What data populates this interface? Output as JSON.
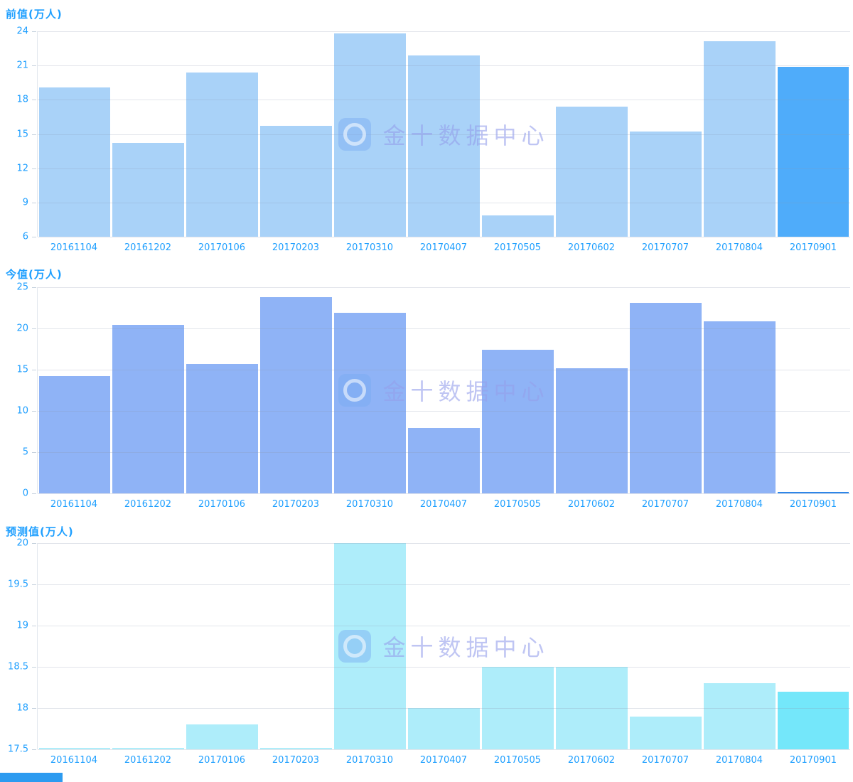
{
  "watermark": {
    "text": "金十数据中心",
    "icon": "jin10-logo-icon"
  },
  "corner_partial": {
    "color": "#2D9BF0"
  },
  "chart_data": [
    {
      "type": "bar",
      "title": "前值(万人)",
      "categories": [
        "20161104",
        "20161202",
        "20170106",
        "20170203",
        "20170310",
        "20170407",
        "20170505",
        "20170602",
        "20170707",
        "20170804",
        "20170901"
      ],
      "values": [
        19.1,
        14.2,
        20.4,
        15.7,
        23.8,
        21.9,
        7.9,
        17.4,
        15.2,
        23.1,
        20.9
      ],
      "ylim": [
        6,
        24
      ],
      "yticks": [
        6,
        9,
        12,
        15,
        18,
        21,
        24
      ],
      "grid": true,
      "legend": "none",
      "xlabel": "",
      "ylabel": "前值(万人)",
      "bar_color": "#A9D2F8",
      "highlight_color": "#4FACFA",
      "highlight_index": 10
    },
    {
      "type": "bar",
      "title": "今值(万人)",
      "categories": [
        "20161104",
        "20161202",
        "20170106",
        "20170203",
        "20170310",
        "20170407",
        "20170505",
        "20170602",
        "20170707",
        "20170804",
        "20170901"
      ],
      "values": [
        14.2,
        20.4,
        15.7,
        23.8,
        21.9,
        7.9,
        17.4,
        15.2,
        23.1,
        20.9,
        0.1
      ],
      "ylim": [
        0,
        25
      ],
      "yticks": [
        0,
        5,
        10,
        15,
        20,
        25
      ],
      "grid": true,
      "legend": "none",
      "xlabel": "",
      "ylabel": "今值(万人)",
      "bar_color": "#8FB3F6",
      "highlight_color": "#2E86E8",
      "highlight_index": 10
    },
    {
      "type": "bar",
      "title": "预测值(万人)",
      "categories": [
        "20161104",
        "20161202",
        "20170106",
        "20170203",
        "20170310",
        "20170407",
        "20170505",
        "20170602",
        "20170707",
        "20170804",
        "20170901"
      ],
      "values": [
        17.5,
        17.5,
        17.8,
        17.5,
        20.0,
        18.0,
        18.5,
        18.5,
        17.9,
        18.3,
        18.2
      ],
      "ylim": [
        17.5,
        20
      ],
      "yticks": [
        17.5,
        18,
        18.5,
        19,
        19.5,
        20
      ],
      "grid": true,
      "legend": "none",
      "xlabel": "",
      "ylabel": "预测值(万人)",
      "bar_color": "#AEEDFA",
      "highlight_color": "#74E7FA",
      "highlight_index": 10
    }
  ]
}
